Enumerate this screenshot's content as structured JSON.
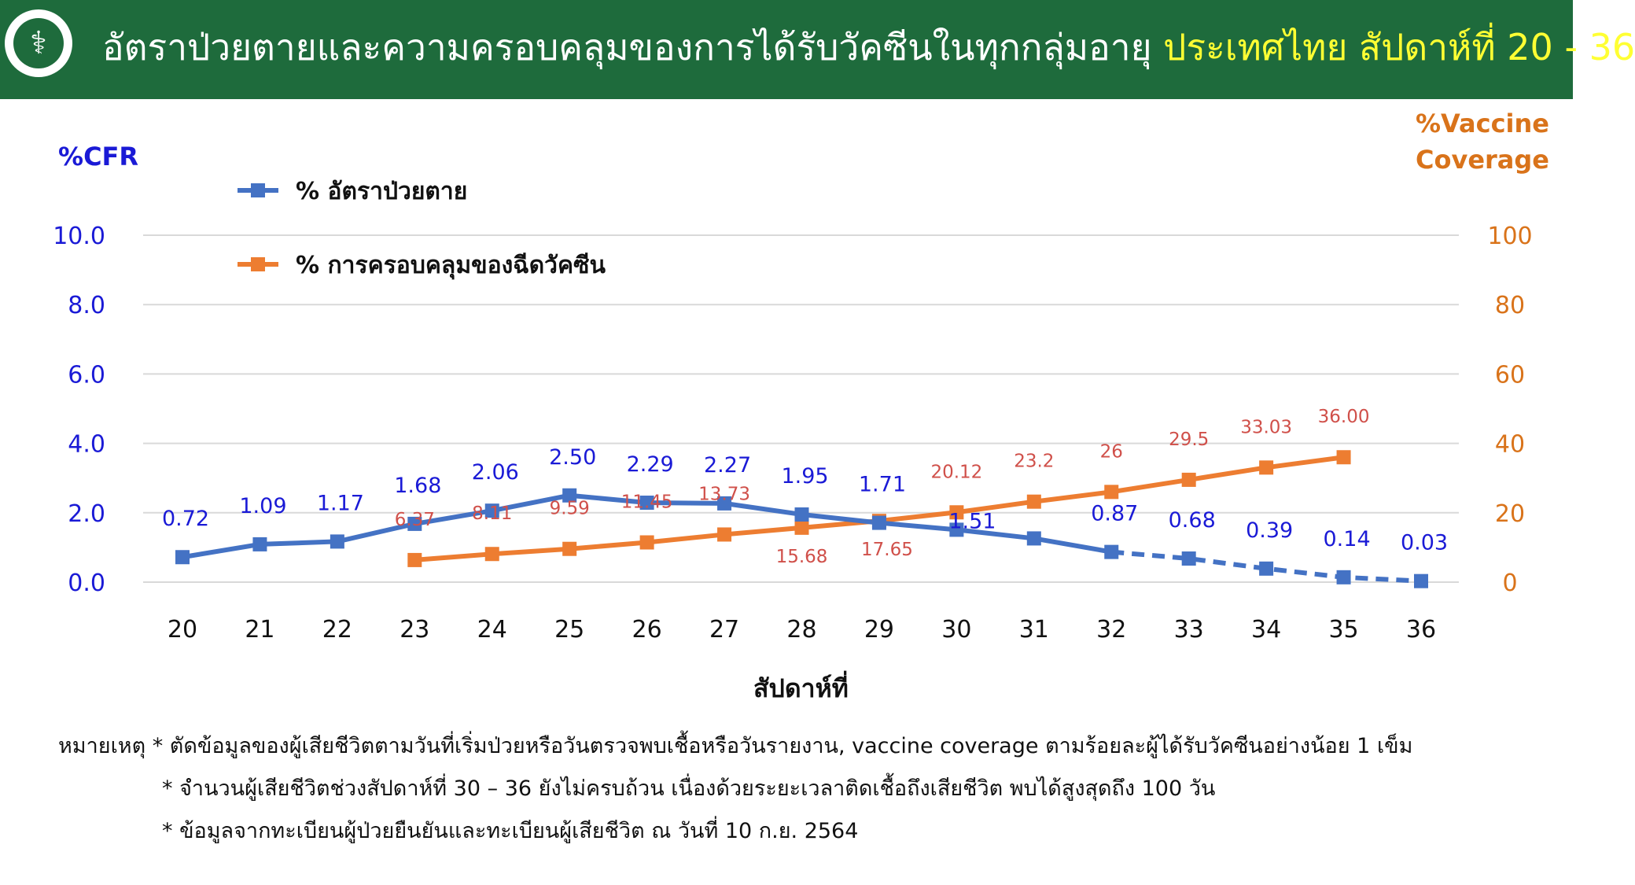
{
  "header": {
    "title_main": "อัตราป่วยตายและความครอบคลุมของการได้รับวัคซีนในทุกกลุ่มอายุ",
    "title_highlight": "ประเทศไทย สัปดาห์ที่ 20 - 36",
    "background_color": "#1e6b3c",
    "highlight_color": "#ffff33",
    "logo_icon": "ministry-of-public-health-seal"
  },
  "notes": [
    "หมายเหตุ * ตัดข้อมูลของผู้เสียชีวิตตามวันที่เริ่มป่วยหรือวันตรวจพบเชื้อหรือวันรายงาน, vaccine coverage ตามร้อยละผู้ได้รับวัคซีนอย่างน้อย 1 เข็ม",
    "* จำนวนผู้เสียชีวิตช่วงสัปดาห์ที่ 30 – 36 ยังไม่ครบถ้วน เนื่องด้วยระยะเวลาติดเชื้อถึงเสียชีวิต พบได้สูงสุดถึง 100 วัน",
    "* ข้อมูลจากทะเบียนผู้ป่วยยืนยันและทะเบียนผู้เสียชีวิต ณ วันที่ 10 ก.ย. 2564"
  ],
  "chart_data": {
    "type": "line",
    "xlabel": "สัปดาห์ที่",
    "ylabel_left": "%CFR",
    "ylabel_right_lines": [
      "%Vaccine",
      "Coverage"
    ],
    "categories": [
      "20",
      "21",
      "22",
      "23",
      "24",
      "25",
      "26",
      "27",
      "28",
      "29",
      "30",
      "31",
      "32",
      "33",
      "34",
      "35",
      "36"
    ],
    "ylim_left": [
      0,
      10
    ],
    "yticks_left": [
      "0.0",
      "2.0",
      "4.0",
      "6.0",
      "8.0",
      "10.0"
    ],
    "ylim_right": [
      0,
      100
    ],
    "yticks_right": [
      "0",
      "20",
      "40",
      "60",
      "80",
      "100"
    ],
    "grid": true,
    "legend_position": "top-left",
    "series": [
      {
        "name": "% อัตราป่วยตาย",
        "axis": "left",
        "color": "#4472c4",
        "label_color": "#1a1ad6",
        "dashed_from": "32",
        "values": [
          0.72,
          1.09,
          1.17,
          1.68,
          2.06,
          2.5,
          2.29,
          2.27,
          1.95,
          1.71,
          1.51,
          1.26,
          0.87,
          0.68,
          0.39,
          0.14,
          0.03
        ],
        "labels": [
          "0.72",
          "1.09",
          "1.17",
          "1.68",
          "2.06",
          "2.50",
          "2.29",
          "2.27",
          "1.95",
          "1.71",
          "1.51",
          "",
          "0.87",
          "0.68",
          "0.39",
          "0.14",
          "0.03"
        ]
      },
      {
        "name": "% การครอบคลุมของฉีดวัคซีน",
        "axis": "right",
        "color": "#ed7d31",
        "label_color": "#d0504a",
        "values": [
          null,
          null,
          null,
          6.37,
          8.11,
          9.59,
          11.45,
          13.73,
          15.68,
          17.65,
          20.12,
          23.2,
          26,
          29.5,
          33.03,
          36.0,
          null
        ],
        "labels": [
          "",
          "",
          "",
          "6.37",
          "8.11",
          "9.59",
          "11.45",
          "13.73",
          "15.68",
          "17.65",
          "20.12",
          "23.2",
          "26",
          "29.5",
          "33.03",
          "36.00",
          ""
        ]
      }
    ]
  }
}
